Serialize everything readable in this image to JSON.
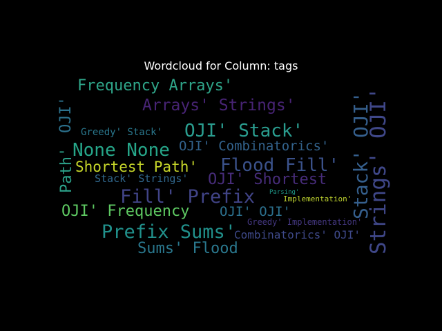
{
  "title": "Wordcloud for Column: tags",
  "colors": {
    "background": "#000000",
    "title": "#ffffff"
  },
  "words": [
    {
      "text": "Frequency Arrays'",
      "color": "#2fa68a"
    },
    {
      "text": "Arrays' Strings'",
      "color": "#482475"
    },
    {
      "text": "OJI' Stack'",
      "color": "#2a9d8f"
    },
    {
      "text": "Greedy' Stack'",
      "color": "#2a788e"
    },
    {
      "text": "None None",
      "color": "#26a689"
    },
    {
      "text": "OJI' Combinatorics'",
      "color": "#33638d"
    },
    {
      "text": "Shortest Path'",
      "color": "#c8d82a"
    },
    {
      "text": "Flood Fill'",
      "color": "#3b528b"
    },
    {
      "text": "Stack' Strings'",
      "color": "#31688e"
    },
    {
      "text": "OJI' Shortest",
      "color": "#472c7a"
    },
    {
      "text": "Fill' Prefix",
      "color": "#414487"
    },
    {
      "text": "Parsing'",
      "color": "#1f9a8a"
    },
    {
      "text": "Implementation'",
      "color": "#c0d530"
    },
    {
      "text": "OJI' Frequency",
      "color": "#5ec962"
    },
    {
      "text": "OJI' OJI'",
      "color": "#2c718e"
    },
    {
      "text": "Greedy' Implementation'",
      "color": "#453882"
    },
    {
      "text": "Prefix Sums'",
      "color": "#21918c"
    },
    {
      "text": "Combinatorics' OJI'",
      "color": "#3e4989"
    },
    {
      "text": "Sums' Flood",
      "color": "#2a788e"
    },
    {
      "text": "OJI'",
      "color": "#2c728e"
    },
    {
      "text": "Path'",
      "color": "#2ca189"
    },
    {
      "text": "Stack' OJI'",
      "color": "#355f8d"
    },
    {
      "text": "Strings' OJI'",
      "color": "#3f4788"
    }
  ]
}
